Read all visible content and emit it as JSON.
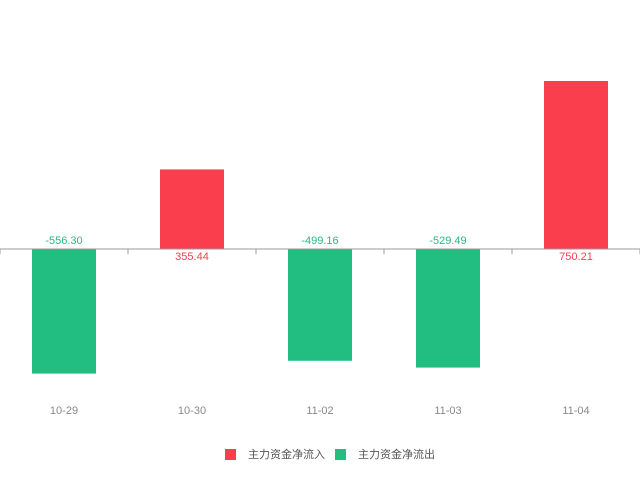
{
  "chart_data": {
    "type": "bar",
    "categories": [
      "10-29",
      "10-30",
      "11-02",
      "11-03",
      "11-04"
    ],
    "series": [
      {
        "name": "主力资金净流入",
        "color": "#fa3e4e",
        "values": [
          null,
          355.44,
          null,
          null,
          750.21
        ],
        "value_labels": [
          null,
          "355.44",
          null,
          null,
          "750.21"
        ]
      },
      {
        "name": "主力资金净流出",
        "color": "#22bd80",
        "values": [
          -556.3,
          null,
          -499.16,
          -529.49,
          null
        ],
        "value_labels": [
          "-556.30",
          null,
          "-499.16",
          "-529.49",
          null
        ]
      }
    ]
  }
}
